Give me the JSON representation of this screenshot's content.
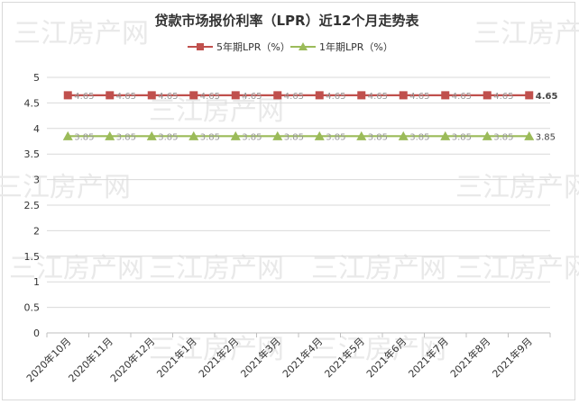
{
  "chart_data": {
    "type": "line",
    "title": "贷款市场报价利率（LPR）近12个月走势表",
    "watermark": "三江房产网",
    "categories": [
      "2020年10月",
      "2020年11月",
      "2020年12月",
      "2021年1月",
      "2021年2月",
      "2021年3月",
      "2021年4月",
      "2021年5月",
      "2021年6月",
      "2021年7月",
      "2021年8月",
      "2021年9月"
    ],
    "y_ticks": [
      "0",
      "0.5",
      "1",
      "1.5",
      "2",
      "2.5",
      "3",
      "3.5",
      "4",
      "4.5",
      "5"
    ],
    "ylim": [
      0,
      5
    ],
    "grid": true,
    "legend_position": "top",
    "series": [
      {
        "name": "5年期LPR（%）",
        "values": [
          4.65,
          4.65,
          4.65,
          4.65,
          4.65,
          4.65,
          4.65,
          4.65,
          4.65,
          4.65,
          4.65,
          4.65
        ],
        "color": "#c0504d",
        "marker": "square",
        "labels": [
          "4.65",
          "4.65",
          "4.65",
          "4.65",
          "4.65",
          "4.65",
          "4.65",
          "4.65",
          "4.65",
          "4.65",
          "4.65",
          "4.65"
        ]
      },
      {
        "name": "1年期LPR（%）",
        "values": [
          3.85,
          3.85,
          3.85,
          3.85,
          3.85,
          3.85,
          3.85,
          3.85,
          3.85,
          3.85,
          3.85,
          3.85
        ],
        "color": "#9bbb59",
        "marker": "triangle",
        "labels": [
          "3.85",
          "3.85",
          "3.85",
          "3.85",
          "3.85",
          "3.85",
          "3.85",
          "3.85",
          "3.85",
          "3.85",
          "3.85",
          "3.85"
        ]
      }
    ]
  }
}
